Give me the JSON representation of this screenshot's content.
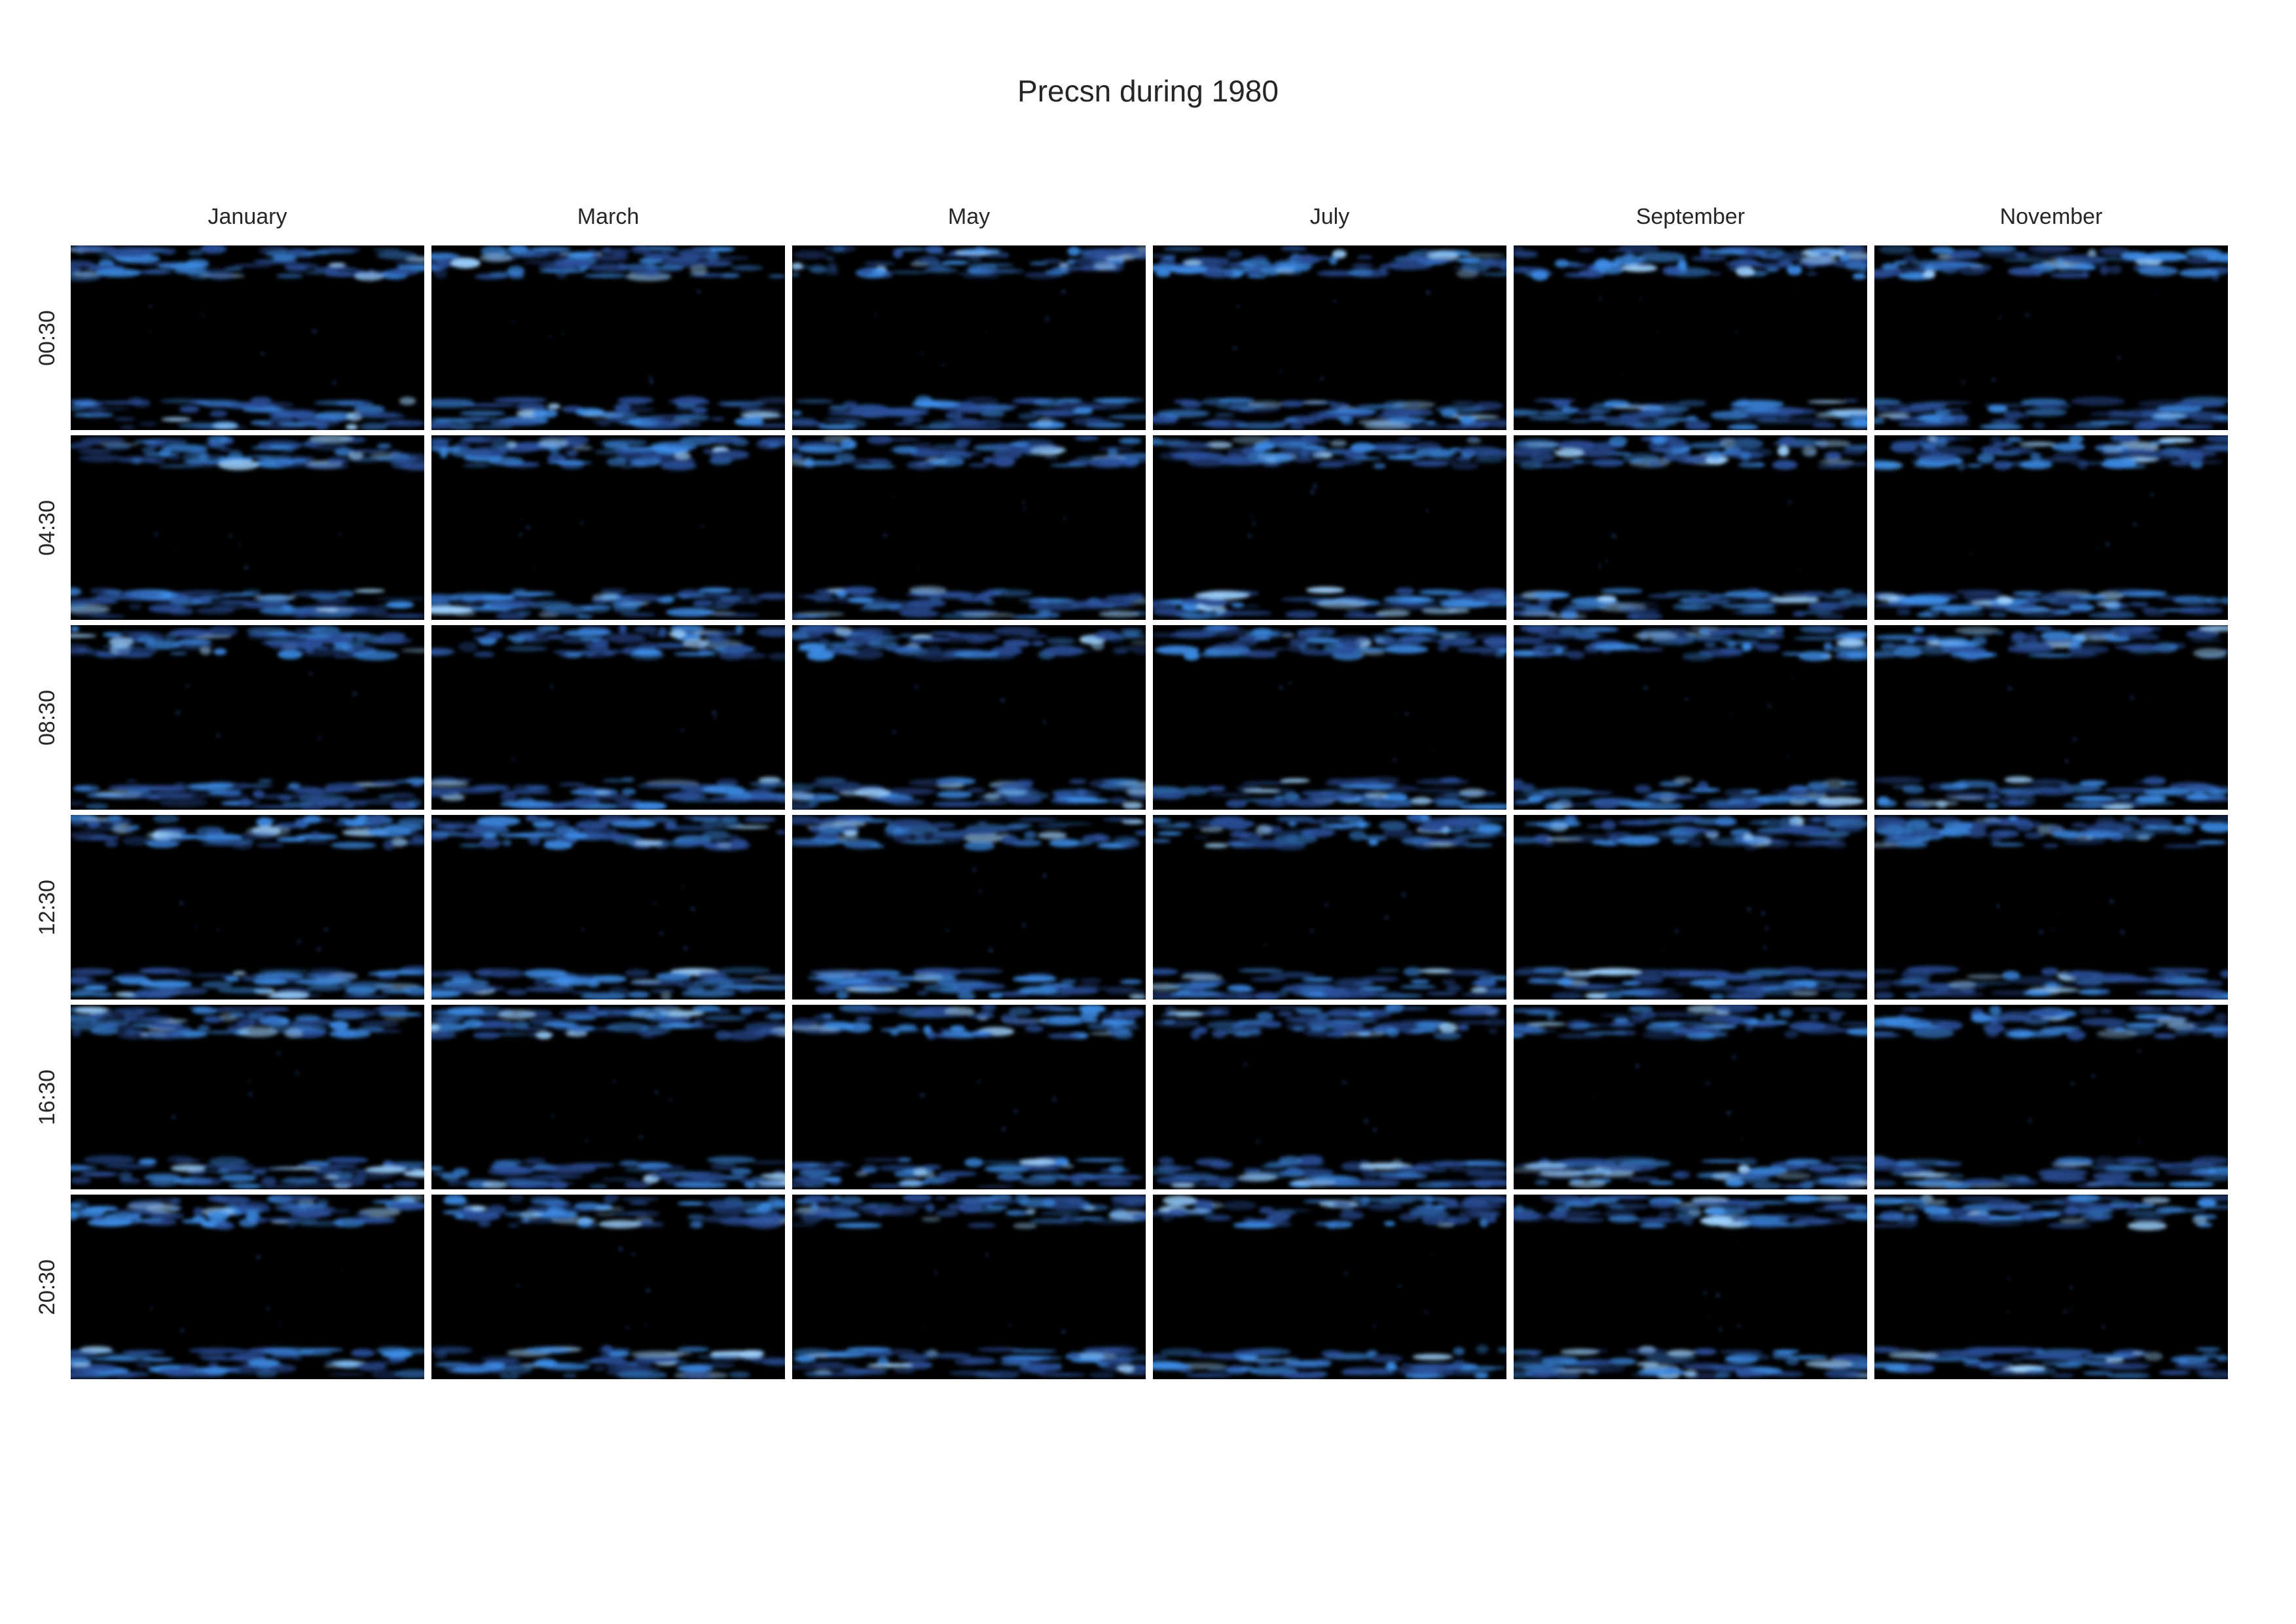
{
  "chart_data": {
    "type": "heatmap",
    "title": "Precsn during 1980",
    "columns": [
      "January",
      "March",
      "May",
      "July",
      "September",
      "November"
    ],
    "rows": [
      "00:30",
      "04:30",
      "08:30",
      "12:30",
      "16:30",
      "20:30"
    ],
    "colormap": {
      "low": "#000000",
      "mid": "#2a4f9a",
      "high": "#3d8de8",
      "peak": "#9fd3ff"
    },
    "legend": "none",
    "grid": false
  }
}
